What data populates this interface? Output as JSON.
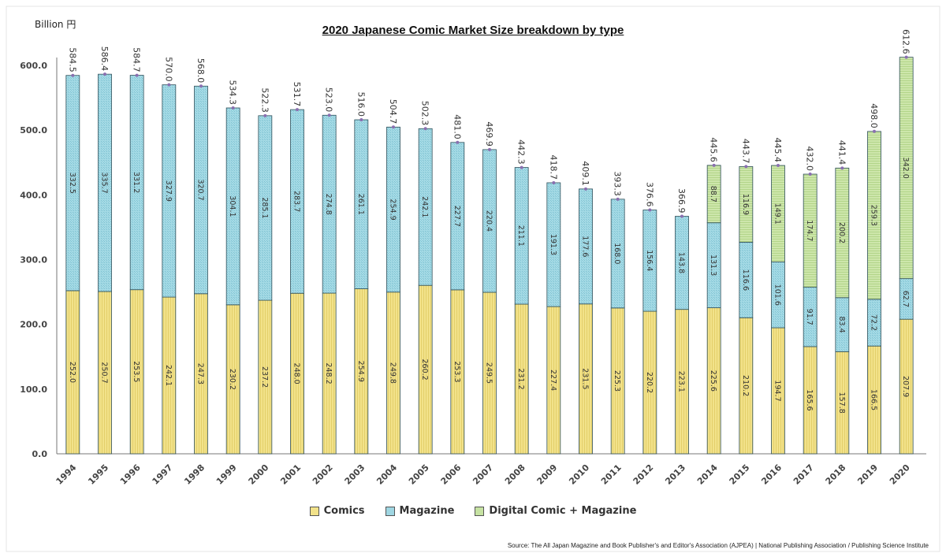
{
  "chart_data": {
    "type": "bar",
    "stacked": true,
    "title": "2020 Japanese Comic Market Size breakdown by type",
    "ylabel": "Billion 円",
    "ylim": [
      0,
      600
    ],
    "yticks": [
      "0.0",
      "100.0",
      "200.0",
      "300.0",
      "400.0",
      "500.0",
      "600.0"
    ],
    "grid": false,
    "legend_position": "bottom",
    "categories": [
      "1994",
      "1995",
      "1996",
      "1997",
      "1998",
      "1999",
      "2000",
      "2001",
      "2002",
      "2003",
      "2004",
      "2005",
      "2006",
      "2007",
      "2008",
      "2009",
      "2010",
      "2011",
      "2012",
      "2013",
      "2014",
      "2015",
      "2016",
      "2017",
      "2018",
      "2019",
      "2020"
    ],
    "series": [
      {
        "name": "Comics",
        "color": "#f2e28a",
        "values": [
          252.0,
          250.7,
          253.5,
          242.1,
          247.3,
          230.2,
          237.2,
          248.0,
          248.2,
          254.9,
          249.8,
          260.2,
          253.3,
          249.5,
          231.2,
          227.4,
          231.5,
          225.3,
          220.2,
          223.1,
          225.6,
          210.2,
          194.7,
          165.6,
          157.8,
          166.5,
          207.9
        ]
      },
      {
        "name": "Magazine",
        "color": "#9fd6e2",
        "values": [
          332.5,
          335.7,
          331.2,
          327.9,
          320.7,
          304.1,
          285.1,
          283.7,
          274.8,
          261.1,
          254.9,
          242.1,
          227.7,
          220.4,
          211.1,
          191.3,
          177.6,
          168.0,
          156.4,
          143.8,
          131.3,
          116.6,
          101.6,
          91.7,
          83.4,
          72.2,
          62.7
        ]
      },
      {
        "name": "Digital Comic + Magazine",
        "color": "#c6e2a2",
        "values": [
          null,
          null,
          null,
          null,
          null,
          null,
          null,
          null,
          null,
          null,
          null,
          null,
          null,
          null,
          null,
          null,
          null,
          null,
          null,
          null,
          88.7,
          116.9,
          149.1,
          174.7,
          200.2,
          259.3,
          342.0
        ]
      }
    ],
    "totals": [
      "584.5",
      "586.4",
      "584.7",
      "570.0",
      "568.0",
      "534.3",
      "522.3",
      "531.7",
      "523.0",
      "516.0",
      "504.7",
      "502.3",
      "481.0",
      "469.9",
      "442.3",
      "418.7",
      "409.1",
      "393.3",
      "376.6",
      "366.9",
      "445.6",
      "443.7",
      "445.4",
      "432.0",
      "441.4",
      "498.0",
      "612.6"
    ],
    "source": "Source:  The All Japan Magazine and Book Publisher's  and Editor's Association (AJPEA) | National Publishing  Association / Publishing Science Institute"
  }
}
